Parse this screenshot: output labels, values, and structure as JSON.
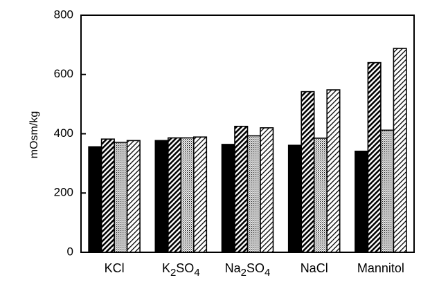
{
  "chart_data": {
    "type": "bar",
    "title": "",
    "xlabel": "",
    "ylabel": "mOsm/kg",
    "ylim": [
      0,
      800
    ],
    "yticks": [
      0,
      200,
      400,
      600,
      800
    ],
    "grid": false,
    "legend": "none",
    "categories": [
      {
        "label": "KCl",
        "parts": [
          {
            "t": "KCl"
          }
        ]
      },
      {
        "label": "K2SO4",
        "parts": [
          {
            "t": "K"
          },
          {
            "t": "2",
            "sub": true
          },
          {
            "t": "SO"
          },
          {
            "t": "4",
            "sub": true
          }
        ]
      },
      {
        "label": "Na2SO4",
        "parts": [
          {
            "t": "Na"
          },
          {
            "t": "2",
            "sub": true
          },
          {
            "t": "SO"
          },
          {
            "t": "4",
            "sub": true
          }
        ]
      },
      {
        "label": "NaCl",
        "parts": [
          {
            "t": "NaCl"
          }
        ]
      },
      {
        "label": "Mannitol",
        "parts": [
          {
            "t": "Mannitol"
          }
        ]
      }
    ],
    "series": [
      {
        "pattern": "solid",
        "color": "#000000",
        "values": [
          356,
          377,
          364,
          361,
          341
        ]
      },
      {
        "pattern": "dense-diagonal-hatch",
        "color": "#000000",
        "values": [
          382,
          386,
          425,
          542,
          640
        ]
      },
      {
        "pattern": "dotted",
        "color": "#000000",
        "values": [
          371,
          386,
          393,
          385,
          412
        ]
      },
      {
        "pattern": "light-diagonal-hatch",
        "color": "#000000",
        "values": [
          377,
          389,
          420,
          548,
          688
        ]
      }
    ]
  }
}
